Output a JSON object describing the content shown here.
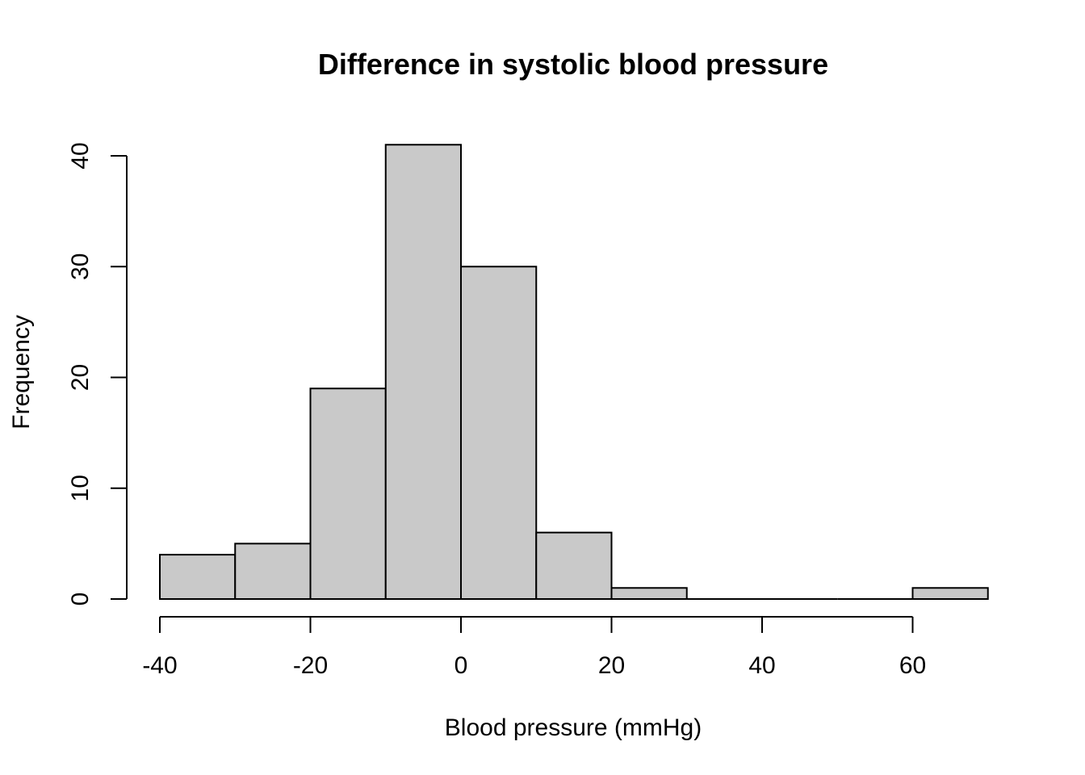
{
  "chart_data": {
    "type": "bar",
    "subtype": "histogram",
    "title": "Difference in systolic blood pressure",
    "xlabel": "Blood pressure (mmHg)",
    "ylabel": "Frequency",
    "bins": [
      {
        "from": -40,
        "to": -30,
        "count": 4
      },
      {
        "from": -30,
        "to": -20,
        "count": 5
      },
      {
        "from": -20,
        "to": -10,
        "count": 19
      },
      {
        "from": -10,
        "to": 0,
        "count": 41
      },
      {
        "from": 0,
        "to": 10,
        "count": 30
      },
      {
        "from": 10,
        "to": 20,
        "count": 6
      },
      {
        "from": 20,
        "to": 30,
        "count": 1
      },
      {
        "from": 30,
        "to": 40,
        "count": 0
      },
      {
        "from": 40,
        "to": 50,
        "count": 0
      },
      {
        "from": 50,
        "to": 60,
        "count": 0
      },
      {
        "from": 60,
        "to": 70,
        "count": 1
      }
    ],
    "xticks": [
      -40,
      -20,
      0,
      20,
      40,
      60
    ],
    "yticks": [
      0,
      10,
      20,
      30,
      40
    ],
    "xlim": [
      -40,
      70
    ],
    "ylim": [
      0,
      41
    ],
    "grid": false,
    "legend": "none",
    "bar_color": "#c9c9c9",
    "edge_color": "#000000"
  }
}
